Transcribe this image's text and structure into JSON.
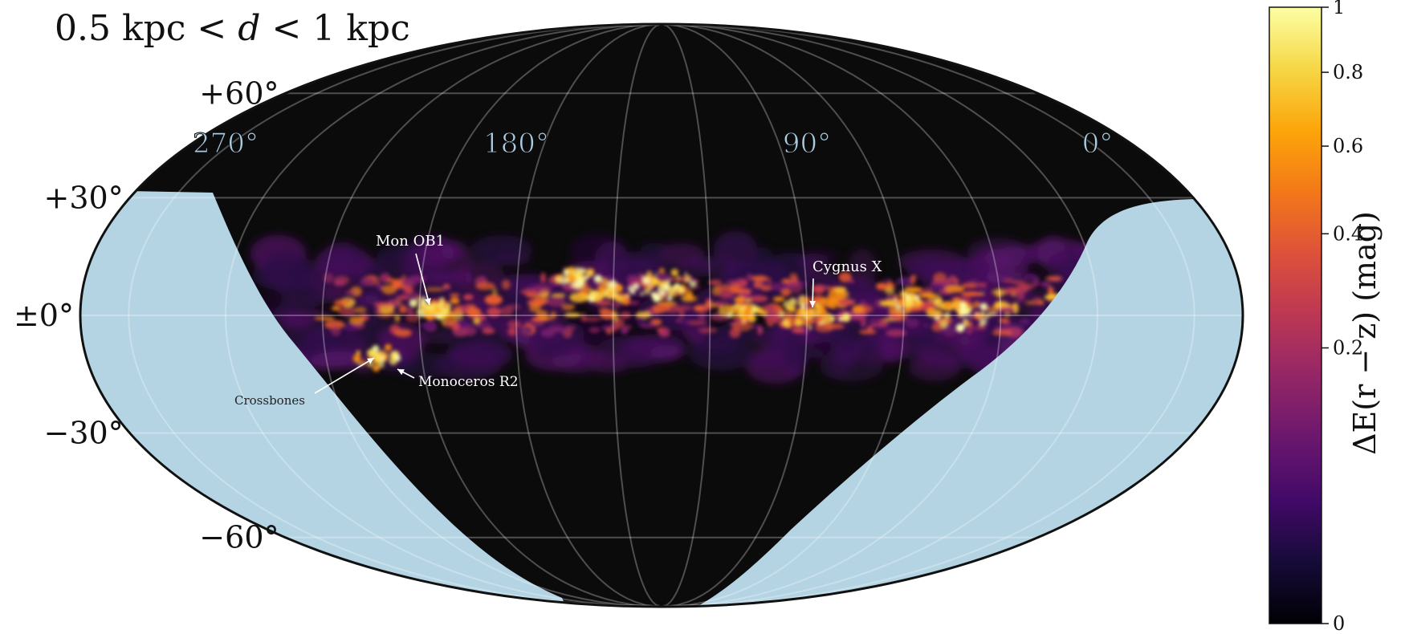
{
  "title": {
    "prefix": "0.5 kpc < ",
    "variable": "d",
    "suffix": " < 1 kpc"
  },
  "chart_data": {
    "type": "heatmap",
    "projection": "mollweide",
    "title": "0.5 kpc < d < 1 kpc",
    "longitude_ticks": [
      {
        "lon": 270,
        "label": "270°"
      },
      {
        "lon": 180,
        "label": "180°"
      },
      {
        "lon": 90,
        "label": "90°"
      },
      {
        "lon": 0,
        "label": "0°"
      }
    ],
    "latitude_ticks": [
      {
        "lat": 60,
        "label": "+60°"
      },
      {
        "lat": 30,
        "label": "+30°"
      },
      {
        "lat": 0,
        "label": "±0°"
      },
      {
        "lat": -30,
        "label": "−30°"
      },
      {
        "lat": -60,
        "label": "−60°"
      }
    ],
    "grid": true,
    "annotations": [
      {
        "label": "Mon OB1",
        "lon": 204,
        "lat": 2
      },
      {
        "label": "Cygnus X",
        "lon": 80,
        "lat": 1
      },
      {
        "label": "Crossbones",
        "lon": 222,
        "lat": -12
      },
      {
        "label": "Monoceros R2",
        "lon": 214,
        "lat": -12
      }
    ],
    "colorbar": {
      "label": "ΔE(r − z)  (mag)",
      "ticks": [
        {
          "value": 0,
          "label": "0"
        },
        {
          "value": 0.2,
          "label": "0.2"
        },
        {
          "value": 0.4,
          "label": "0.4"
        },
        {
          "value": 0.6,
          "label": "0.6"
        },
        {
          "value": 0.8,
          "label": "0.8"
        },
        {
          "value": 1,
          "label": "1"
        }
      ],
      "range": [
        0,
        1
      ],
      "colormap": "inferno"
    },
    "colors": {
      "no_data": "#b4d4e4",
      "background_map": "#0c0b0c",
      "lon_label": "#a8cde0"
    }
  }
}
